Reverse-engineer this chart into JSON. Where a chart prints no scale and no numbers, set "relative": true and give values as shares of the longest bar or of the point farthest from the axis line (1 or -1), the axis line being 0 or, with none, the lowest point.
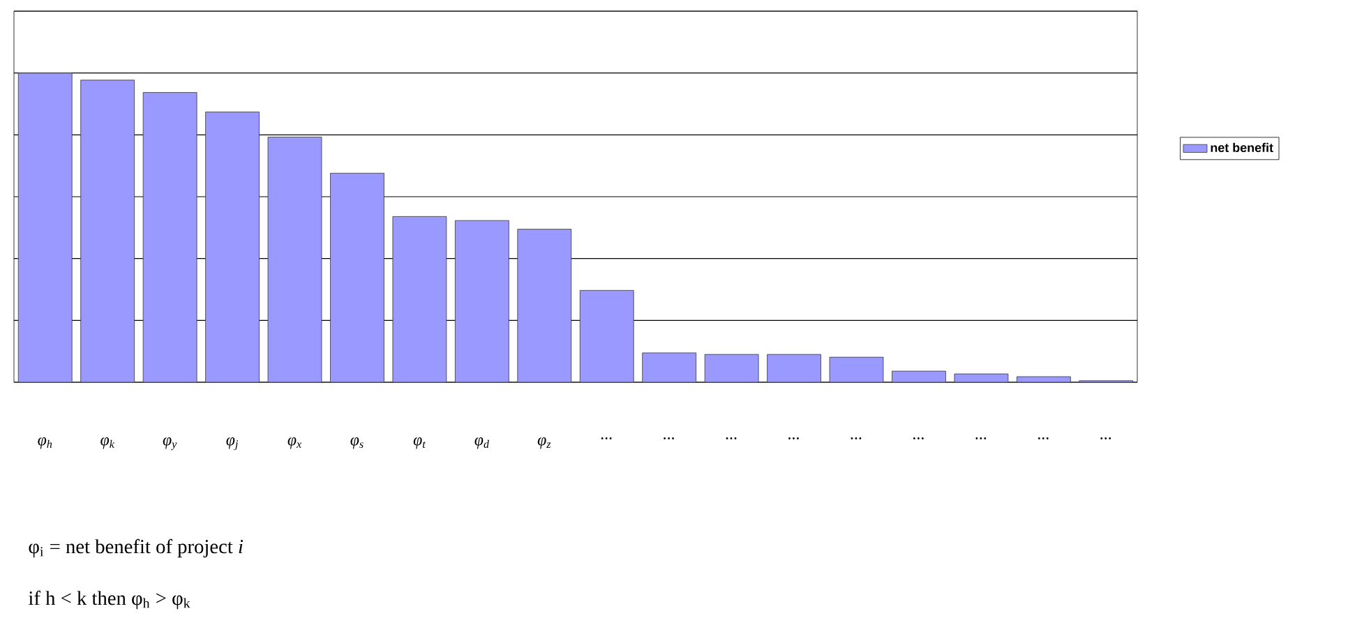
{
  "chart_data": {
    "type": "bar",
    "relative": true,
    "grid": "y",
    "legend": "right",
    "categories": [
      "φ$_{h}$",
      "φ$_{k}$",
      "φ$_{y}$",
      "φ$_{j}$",
      "φ$_{x}$",
      "φ$_{s}$",
      "φ$_{t}$",
      "φ$_{d}$",
      "φ$_{z}$",
      "...",
      "...",
      "...",
      "...",
      "...",
      "...",
      "...",
      "...",
      "..."
    ],
    "series": [
      {
        "name": "net benefit",
        "color": "#9999ff",
        "values": [
          1,
          0.977,
          0.937,
          0.874,
          0.793,
          0.676,
          0.536,
          0.523,
          0.495,
          0.297,
          0.095,
          0.09,
          0.09,
          0.081,
          0.036,
          0.027,
          0.018,
          0.005
        ]
      }
    ],
    "annotations": [
      "φ$_{i}$ = net benefit of project *i*",
      "if h < k then φ$_{h}$ > φ$_{k}$"
    ]
  }
}
